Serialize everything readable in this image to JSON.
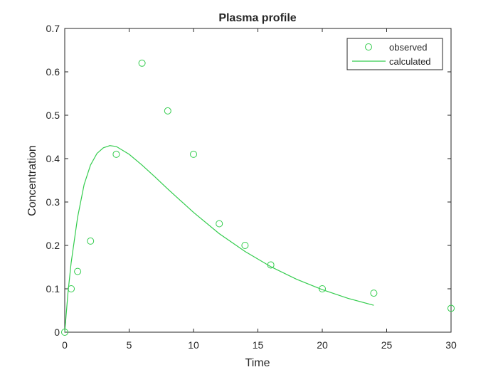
{
  "chart_data": {
    "type": "line",
    "title": "Plasma profile",
    "xlabel": "Time",
    "ylabel": "Concentration",
    "xlim": [
      0,
      30
    ],
    "ylim": [
      0,
      0.7
    ],
    "xticks": [
      0,
      5,
      10,
      15,
      20,
      25,
      30
    ],
    "yticks": [
      0,
      0.1,
      0.2,
      0.3,
      0.4,
      0.5,
      0.6,
      0.7
    ],
    "xtick_labels": [
      "0",
      "5",
      "10",
      "15",
      "20",
      "25",
      "30"
    ],
    "ytick_labels": [
      "0",
      "0.1",
      "0.2",
      "0.3",
      "0.4",
      "0.5",
      "0.6",
      "0.7"
    ],
    "grid": false,
    "legend_position": "top-right",
    "color": "#33cc4d",
    "series": [
      {
        "name": "observed",
        "style": "markers",
        "marker": "circle",
        "x": [
          0,
          0.5,
          1,
          2,
          4,
          6,
          8,
          10,
          12,
          14,
          16,
          20,
          24,
          30
        ],
        "y": [
          0,
          0.1,
          0.14,
          0.21,
          0.41,
          0.62,
          0.51,
          0.41,
          0.25,
          0.2,
          0.155,
          0.1,
          0.09,
          0.055
        ]
      },
      {
        "name": "calculated",
        "style": "line",
        "x": [
          0,
          0.25,
          0.5,
          1,
          1.5,
          2,
          2.5,
          3,
          3.5,
          4,
          5,
          6,
          7,
          8,
          10,
          12,
          14,
          16,
          18,
          20,
          22,
          24
        ],
        "y": [
          0,
          0.09,
          0.16,
          0.265,
          0.34,
          0.385,
          0.412,
          0.425,
          0.43,
          0.428,
          0.41,
          0.385,
          0.358,
          0.33,
          0.276,
          0.227,
          0.186,
          0.151,
          0.122,
          0.098,
          0.078,
          0.062
        ]
      }
    ]
  }
}
